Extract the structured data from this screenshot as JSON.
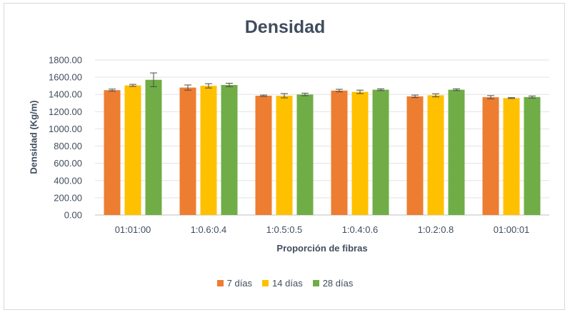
{
  "chart_data": {
    "type": "bar",
    "title": "Densidad",
    "xlabel": "Proporción de fibras",
    "ylabel": "Densidad (Kg/m)",
    "ylim": [
      0,
      1800
    ],
    "y_tick_labels": [
      "0.00",
      "200.00",
      "400.00",
      "600.00",
      "800.00",
      "1000.00",
      "1200.00",
      "1400.00",
      "1600.00",
      "1800.00"
    ],
    "categories": [
      "01:01:00",
      "1:0.6:0.4",
      "1:0.5:0.5",
      "1:0.4:0.6",
      "1:0.2:0.8",
      "01:00:01"
    ],
    "series": [
      {
        "name": "7 días",
        "color": "#ed7d31",
        "values": [
          1450,
          1480,
          1385,
          1445,
          1378,
          1368
        ],
        "errors": [
          12,
          30,
          8,
          15,
          15,
          18
        ]
      },
      {
        "name": "14 días",
        "color": "#ffc000",
        "values": [
          1505,
          1500,
          1385,
          1430,
          1390,
          1358
        ],
        "errors": [
          12,
          25,
          25,
          20,
          18,
          5
        ]
      },
      {
        "name": "28 días",
        "color": "#70ad47",
        "values": [
          1570,
          1510,
          1400,
          1455,
          1455,
          1370
        ],
        "errors": [
          80,
          20,
          15,
          10,
          10,
          12
        ]
      }
    ],
    "grid": true,
    "legend_position": "bottom"
  }
}
